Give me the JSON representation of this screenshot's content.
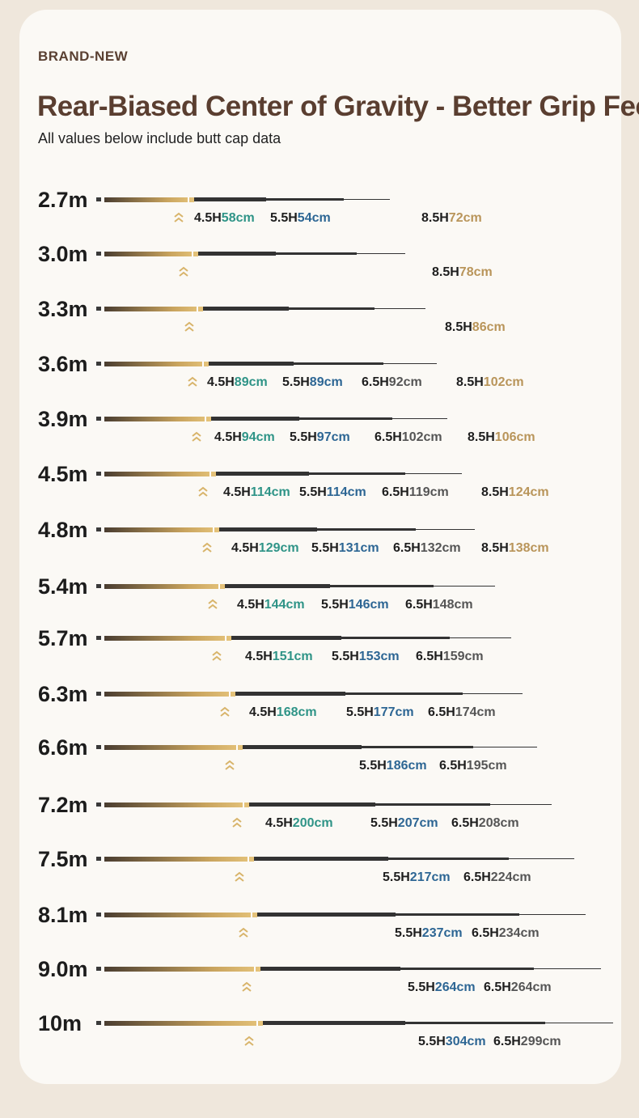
{
  "header": {
    "brand": "BRAND-NEW",
    "title": "Rear-Biased Center of Gravity - Better Grip Feel",
    "subtitle": "All values below include butt cap data"
  },
  "colors": {
    "h45": "#2f9487",
    "h55": "#2d6694",
    "h65": "#555555",
    "h85": "#b9955a"
  },
  "icons": {
    "cog_marker": "double-chevron-up-icon"
  },
  "rows": [
    {
      "length": "2.7m",
      "labels": [
        {
          "prefix": "4.5H",
          "value": "58cm",
          "kind": "h45"
        },
        {
          "prefix": "5.5H",
          "value": "54cm",
          "kind": "h55"
        },
        {
          "prefix": "8.5H",
          "value": "72cm",
          "kind": "h85"
        }
      ]
    },
    {
      "length": "3.0m",
      "labels": [
        {
          "prefix": "8.5H",
          "value": "78cm",
          "kind": "h85"
        }
      ]
    },
    {
      "length": "3.3m",
      "labels": [
        {
          "prefix": "8.5H",
          "value": "86cm",
          "kind": "h85"
        }
      ]
    },
    {
      "length": "3.6m",
      "labels": [
        {
          "prefix": "4.5H",
          "value": "89cm",
          "kind": "h45"
        },
        {
          "prefix": "5.5H",
          "value": "89cm",
          "kind": "h55"
        },
        {
          "prefix": "6.5H",
          "value": "92cm",
          "kind": "h65"
        },
        {
          "prefix": "8.5H",
          "value": "102cm",
          "kind": "h85"
        }
      ]
    },
    {
      "length": "3.9m",
      "labels": [
        {
          "prefix": "4.5H",
          "value": "94cm",
          "kind": "h45"
        },
        {
          "prefix": "5.5H",
          "value": "97cm",
          "kind": "h55"
        },
        {
          "prefix": "6.5H",
          "value": "102cm",
          "kind": "h65"
        },
        {
          "prefix": "8.5H",
          "value": "106cm",
          "kind": "h85"
        }
      ]
    },
    {
      "length": "4.5m",
      "labels": [
        {
          "prefix": "4.5H",
          "value": "114cm",
          "kind": "h45"
        },
        {
          "prefix": "5.5H",
          "value": "114cm",
          "kind": "h55"
        },
        {
          "prefix": "6.5H",
          "value": "119cm",
          "kind": "h65"
        },
        {
          "prefix": "8.5H",
          "value": "124cm",
          "kind": "h85"
        }
      ]
    },
    {
      "length": "4.8m",
      "labels": [
        {
          "prefix": "4.5H",
          "value": "129cm",
          "kind": "h45"
        },
        {
          "prefix": "5.5H",
          "value": "131cm",
          "kind": "h55"
        },
        {
          "prefix": "6.5H",
          "value": "132cm",
          "kind": "h65"
        },
        {
          "prefix": "8.5H",
          "value": "138cm",
          "kind": "h85"
        }
      ]
    },
    {
      "length": "5.4m",
      "labels": [
        {
          "prefix": "4.5H",
          "value": "144cm",
          "kind": "h45"
        },
        {
          "prefix": "5.5H",
          "value": "146cm",
          "kind": "h55"
        },
        {
          "prefix": "6.5H",
          "value": "148cm",
          "kind": "h65"
        }
      ]
    },
    {
      "length": "5.7m",
      "labels": [
        {
          "prefix": "4.5H",
          "value": "151cm",
          "kind": "h45"
        },
        {
          "prefix": "5.5H",
          "value": "153cm",
          "kind": "h55"
        },
        {
          "prefix": "6.5H",
          "value": "159cm",
          "kind": "h65"
        }
      ]
    },
    {
      "length": "6.3m",
      "labels": [
        {
          "prefix": "4.5H",
          "value": "168cm",
          "kind": "h45"
        },
        {
          "prefix": "5.5H",
          "value": "177cm",
          "kind": "h55"
        },
        {
          "prefix": "6.5H",
          "value": "174cm",
          "kind": "h65"
        }
      ]
    },
    {
      "length": "6.6m",
      "labels": [
        {
          "prefix": "5.5H",
          "value": "186cm",
          "kind": "h55"
        },
        {
          "prefix": "6.5H",
          "value": "195cm",
          "kind": "h65"
        }
      ]
    },
    {
      "length": "7.2m",
      "labels": [
        {
          "prefix": "4.5H",
          "value": "200cm",
          "kind": "h45"
        },
        {
          "prefix": "5.5H",
          "value": "207cm",
          "kind": "h55"
        },
        {
          "prefix": "6.5H",
          "value": "208cm",
          "kind": "h65"
        }
      ]
    },
    {
      "length": "7.5m",
      "labels": [
        {
          "prefix": "5.5H",
          "value": "217cm",
          "kind": "h55"
        },
        {
          "prefix": "6.5H",
          "value": "224cm",
          "kind": "h65"
        }
      ]
    },
    {
      "length": "8.1m",
      "labels": [
        {
          "prefix": "5.5H",
          "value": "237cm",
          "kind": "h55"
        },
        {
          "prefix": "6.5H",
          "value": "234cm",
          "kind": "h65"
        }
      ]
    },
    {
      "length": "9.0m",
      "labels": [
        {
          "prefix": "5.5H",
          "value": "264cm",
          "kind": "h55"
        },
        {
          "prefix": "6.5H",
          "value": "264cm",
          "kind": "h65"
        }
      ]
    },
    {
      "length": "10m",
      "labels": [
        {
          "prefix": "5.5H",
          "value": "304cm",
          "kind": "h55"
        },
        {
          "prefix": "6.5H",
          "value": "299cm",
          "kind": "h65"
        }
      ]
    }
  ]
}
